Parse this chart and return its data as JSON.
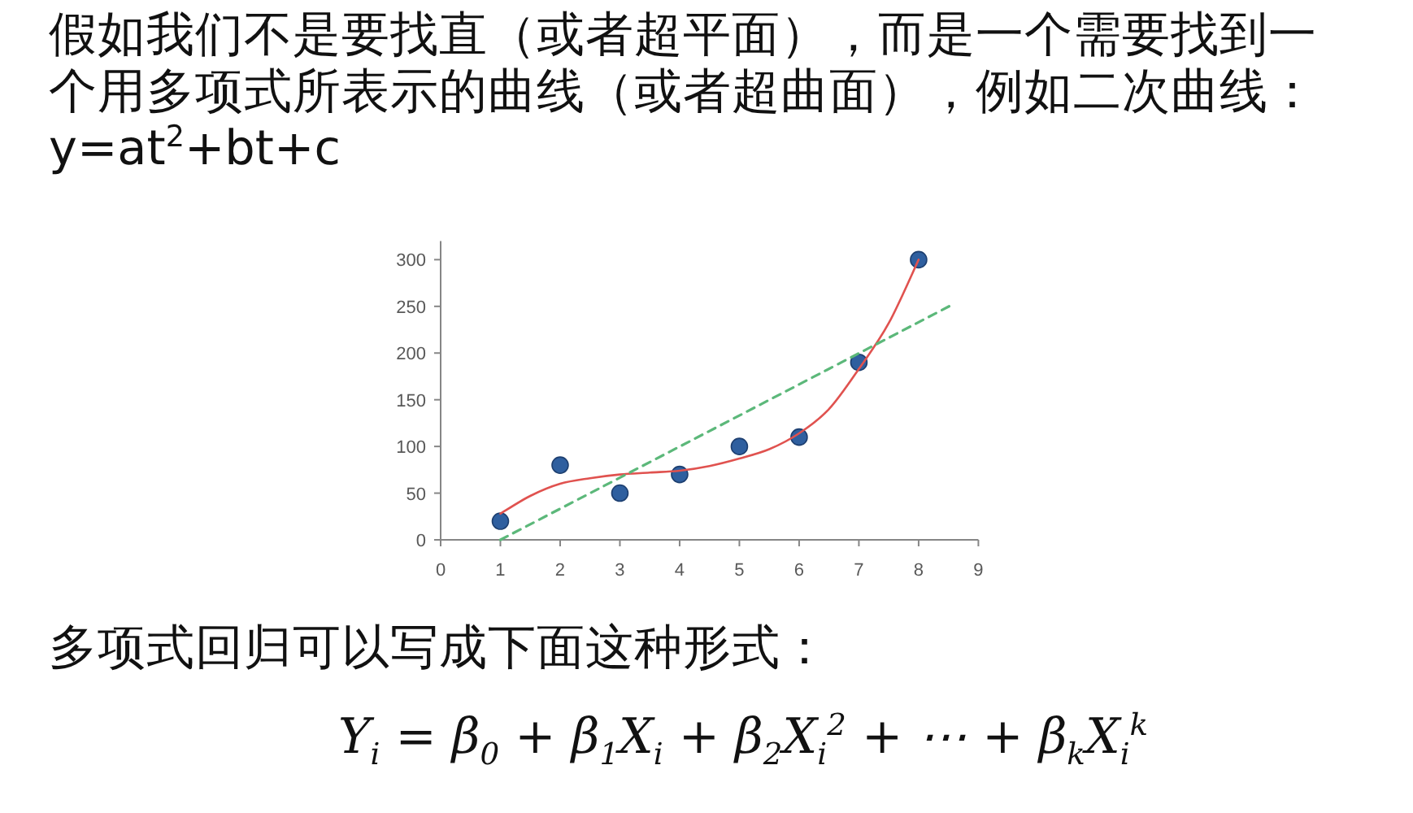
{
  "chart_data": {
    "type": "scatter",
    "title": "假如我们不是要找直（或者超平面），而是一个需要找到一个用多项式所表示的曲线（或者超曲面），例如二次曲线：y=at$^{2}$+bt+c",
    "annotations": [
      "多项式回归可以写成下面这种形式：",
      "Y$_{i}$ = β$_{0}$ + β$_{1}$X$_{i}$ + β$_{2}$X$_{i}$$^{2}$ + ⋯ + β$_{k}$X$_{i}$$^{k}$"
    ],
    "x": [
      1,
      2,
      3,
      4,
      5,
      6,
      7,
      8
    ],
    "series": [
      {
        "color": "#2f5f9f",
        "marker": "circle",
        "values": [
          20,
          80,
          50,
          70,
          100,
          110,
          190,
          300
        ]
      },
      {
        "type": "line",
        "color": "#e0524f",
        "line_style": "solid",
        "x": [
          1,
          1.5,
          2,
          2.5,
          3,
          3.5,
          4,
          4.5,
          5,
          5.5,
          6,
          6.5,
          7,
          7.5,
          8
        ],
        "values": [
          28,
          47,
          60,
          66,
          70,
          72,
          74,
          79,
          87,
          97,
          114,
          140,
          183,
          232,
          300
        ]
      },
      {
        "type": "line",
        "color": "#5cb87a",
        "line_style": "dashed",
        "x": [
          1,
          8.6
        ],
        "values": [
          0,
          253
        ]
      }
    ],
    "xlim": [
      0,
      9
    ],
    "xticks": [
      0,
      1,
      2,
      3,
      4,
      5,
      6,
      7,
      8,
      9
    ],
    "ylim": [
      0,
      320
    ],
    "yticks": [
      0,
      50,
      100,
      150,
      200,
      250,
      300
    ]
  }
}
